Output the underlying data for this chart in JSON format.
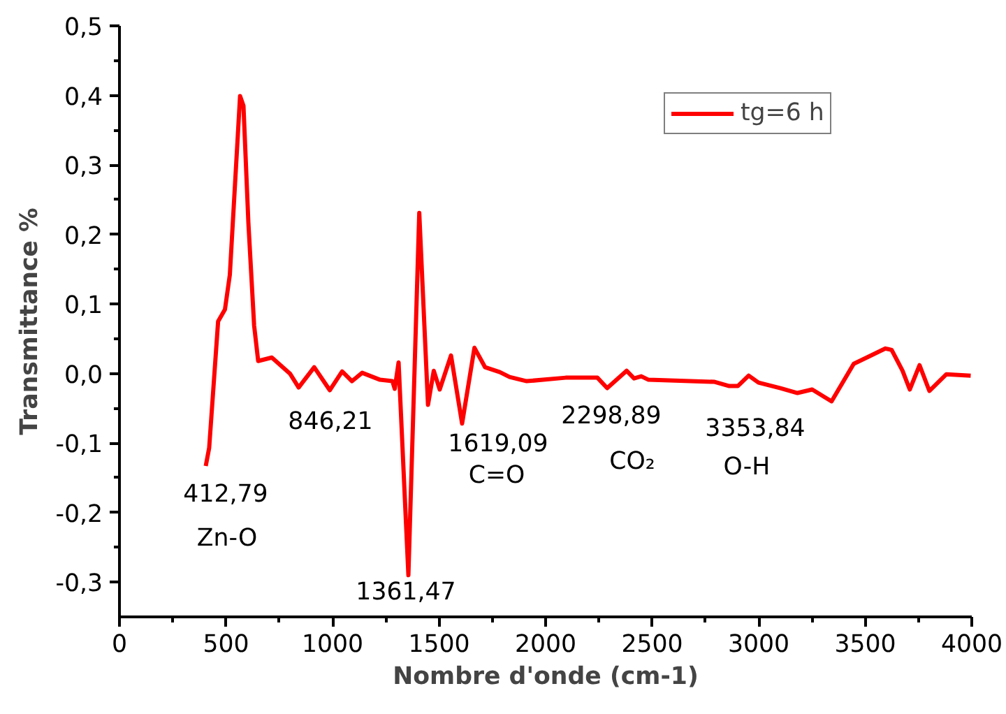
{
  "chart_data": {
    "type": "line",
    "xlabel": "Nombre d'onde (cm-1)",
    "ylabel": "Transmittance %",
    "xlim": [
      0,
      4000
    ],
    "ylim": [
      -0.35,
      0.5
    ],
    "xticks": [
      0,
      500,
      1000,
      1500,
      2000,
      2500,
      3000,
      3500,
      4000
    ],
    "yticks": [
      {
        "value": -0.3,
        "label": "-0,3"
      },
      {
        "value": -0.2,
        "label": "-0,2"
      },
      {
        "value": -0.1,
        "label": "-0,1"
      },
      {
        "value": 0,
        "label": "0,0"
      },
      {
        "value": 0.1,
        "label": "0,1"
      },
      {
        "value": 0.2,
        "label": "0,2"
      },
      {
        "value": 0.3,
        "label": "0,3"
      },
      {
        "value": 0.4,
        "label": "0,4"
      },
      {
        "value": 0.5,
        "label": "0,5"
      }
    ],
    "grid": false,
    "legend": "top right",
    "marker": "none",
    "line_style": "solid",
    "series": [
      {
        "name": "tg=6 h",
        "color": "#ff0000",
        "x": [
          405,
          421,
          463,
          495,
          518,
          566,
          582,
          605,
          632,
          651,
          715,
          800,
          841,
          914,
          987,
          1045,
          1091,
          1139,
          1223,
          1281,
          1292,
          1310,
          1356,
          1407,
          1448,
          1475,
          1503,
          1556,
          1608,
          1666,
          1716,
          1785,
          1831,
          1911,
          2094,
          2243,
          2289,
          2380,
          2415,
          2449,
          2483,
          2793,
          2862,
          2902,
          2953,
          2999,
          3102,
          3182,
          3251,
          3342,
          3446,
          3514,
          3595,
          3624,
          3675,
          3709,
          3755,
          3801,
          3881,
          3995
        ],
        "values": [
          -0.133,
          -0.107,
          0.075,
          0.092,
          0.142,
          0.399,
          0.385,
          0.217,
          0.069,
          0.018,
          0.023,
          0.0,
          -0.02,
          0.009,
          -0.024,
          0.003,
          -0.011,
          0.001,
          -0.009,
          -0.011,
          -0.022,
          0.016,
          -0.29,
          0.231,
          -0.045,
          0.004,
          -0.023,
          0.026,
          -0.072,
          0.037,
          0.009,
          0.002,
          -0.005,
          -0.011,
          -0.006,
          -0.006,
          -0.021,
          0.004,
          -0.007,
          -0.004,
          -0.009,
          -0.012,
          -0.018,
          -0.018,
          -0.003,
          -0.013,
          -0.021,
          -0.028,
          -0.023,
          -0.04,
          0.014,
          0.024,
          0.036,
          0.034,
          0.004,
          -0.023,
          0.012,
          -0.025,
          -0.001,
          -0.003
        ]
      }
    ],
    "annotations": [
      "412,79",
      "Zn-O",
      "846,21",
      "1361,47",
      "1619,09",
      "C=O",
      "2298,89",
      "CO₂",
      "3353,84",
      "O-H"
    ]
  }
}
